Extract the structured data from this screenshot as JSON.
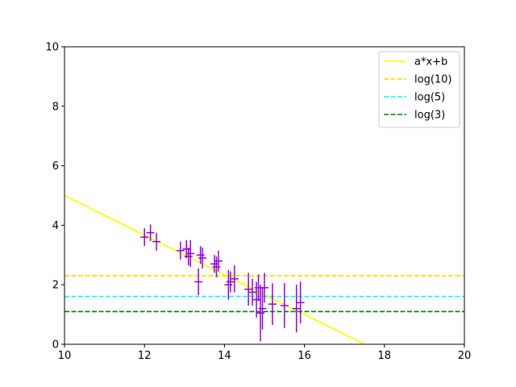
{
  "chart_data": {
    "type": "scatter",
    "title": "",
    "xlabel": "",
    "ylabel": "",
    "xlim": [
      10,
      20
    ],
    "ylim": [
      0,
      10
    ],
    "x_ticks": [
      10,
      12,
      14,
      16,
      18,
      20
    ],
    "y_ticks": [
      0,
      2,
      4,
      6,
      8,
      10
    ],
    "grid": false,
    "legend_position": "top-right",
    "series": [
      {
        "name": "a*x+b",
        "kind": "line",
        "color": "#ffff00",
        "dash": "solid",
        "x": [
          10,
          17.5
        ],
        "y": [
          5.0,
          0.0
        ]
      },
      {
        "name": "log(10)",
        "kind": "hline",
        "color": "#ffd700",
        "dash": "dashed",
        "y": 2.303
      },
      {
        "name": "log(5)",
        "kind": "hline",
        "color": "#00ffff",
        "dash": "dashed",
        "y": 1.609
      },
      {
        "name": "log(3)",
        "kind": "hline",
        "color": "#008000",
        "dash": "dashed",
        "y": 1.099
      }
    ],
    "errorbar_data": {
      "color": "#9400d3",
      "points": [
        {
          "x": 12.0,
          "y": 3.6,
          "xerr": 0.1,
          "yerr": 0.3
        },
        {
          "x": 12.15,
          "y": 3.75,
          "xerr": 0.1,
          "yerr": 0.28
        },
        {
          "x": 12.3,
          "y": 3.45,
          "xerr": 0.1,
          "yerr": 0.3
        },
        {
          "x": 12.9,
          "y": 3.15,
          "xerr": 0.1,
          "yerr": 0.3
        },
        {
          "x": 13.05,
          "y": 3.2,
          "xerr": 0.1,
          "yerr": 0.3
        },
        {
          "x": 13.1,
          "y": 2.95,
          "xerr": 0.1,
          "yerr": 0.3
        },
        {
          "x": 13.15,
          "y": 3.05,
          "xerr": 0.1,
          "yerr": 0.45
        },
        {
          "x": 13.35,
          "y": 2.1,
          "xerr": 0.1,
          "yerr": 0.45
        },
        {
          "x": 13.4,
          "y": 3.0,
          "xerr": 0.1,
          "yerr": 0.3
        },
        {
          "x": 13.45,
          "y": 2.9,
          "xerr": 0.1,
          "yerr": 0.35
        },
        {
          "x": 13.75,
          "y": 2.7,
          "xerr": 0.1,
          "yerr": 0.3
        },
        {
          "x": 13.8,
          "y": 2.6,
          "xerr": 0.1,
          "yerr": 0.35
        },
        {
          "x": 13.85,
          "y": 2.8,
          "xerr": 0.1,
          "yerr": 0.35
        },
        {
          "x": 14.1,
          "y": 2.0,
          "xerr": 0.1,
          "yerr": 0.5
        },
        {
          "x": 14.15,
          "y": 2.1,
          "xerr": 0.1,
          "yerr": 0.35
        },
        {
          "x": 14.25,
          "y": 2.2,
          "xerr": 0.1,
          "yerr": 0.45
        },
        {
          "x": 14.6,
          "y": 1.85,
          "xerr": 0.1,
          "yerr": 0.55
        },
        {
          "x": 14.7,
          "y": 1.75,
          "xerr": 0.1,
          "yerr": 0.45
        },
        {
          "x": 14.8,
          "y": 1.5,
          "xerr": 0.1,
          "yerr": 0.6
        },
        {
          "x": 14.85,
          "y": 1.9,
          "xerr": 0.1,
          "yerr": 0.45
        },
        {
          "x": 14.9,
          "y": 1.05,
          "xerr": 0.1,
          "yerr": 0.95
        },
        {
          "x": 14.95,
          "y": 1.2,
          "xerr": 0.1,
          "yerr": 0.7
        },
        {
          "x": 15.0,
          "y": 1.9,
          "xerr": 0.1,
          "yerr": 0.5
        },
        {
          "x": 15.2,
          "y": 1.35,
          "xerr": 0.1,
          "yerr": 0.7
        },
        {
          "x": 15.5,
          "y": 1.3,
          "xerr": 0.1,
          "yerr": 0.75
        },
        {
          "x": 15.8,
          "y": 1.2,
          "xerr": 0.1,
          "yerr": 0.8
        },
        {
          "x": 15.9,
          "y": 1.4,
          "xerr": 0.1,
          "yerr": 0.7
        }
      ]
    }
  }
}
